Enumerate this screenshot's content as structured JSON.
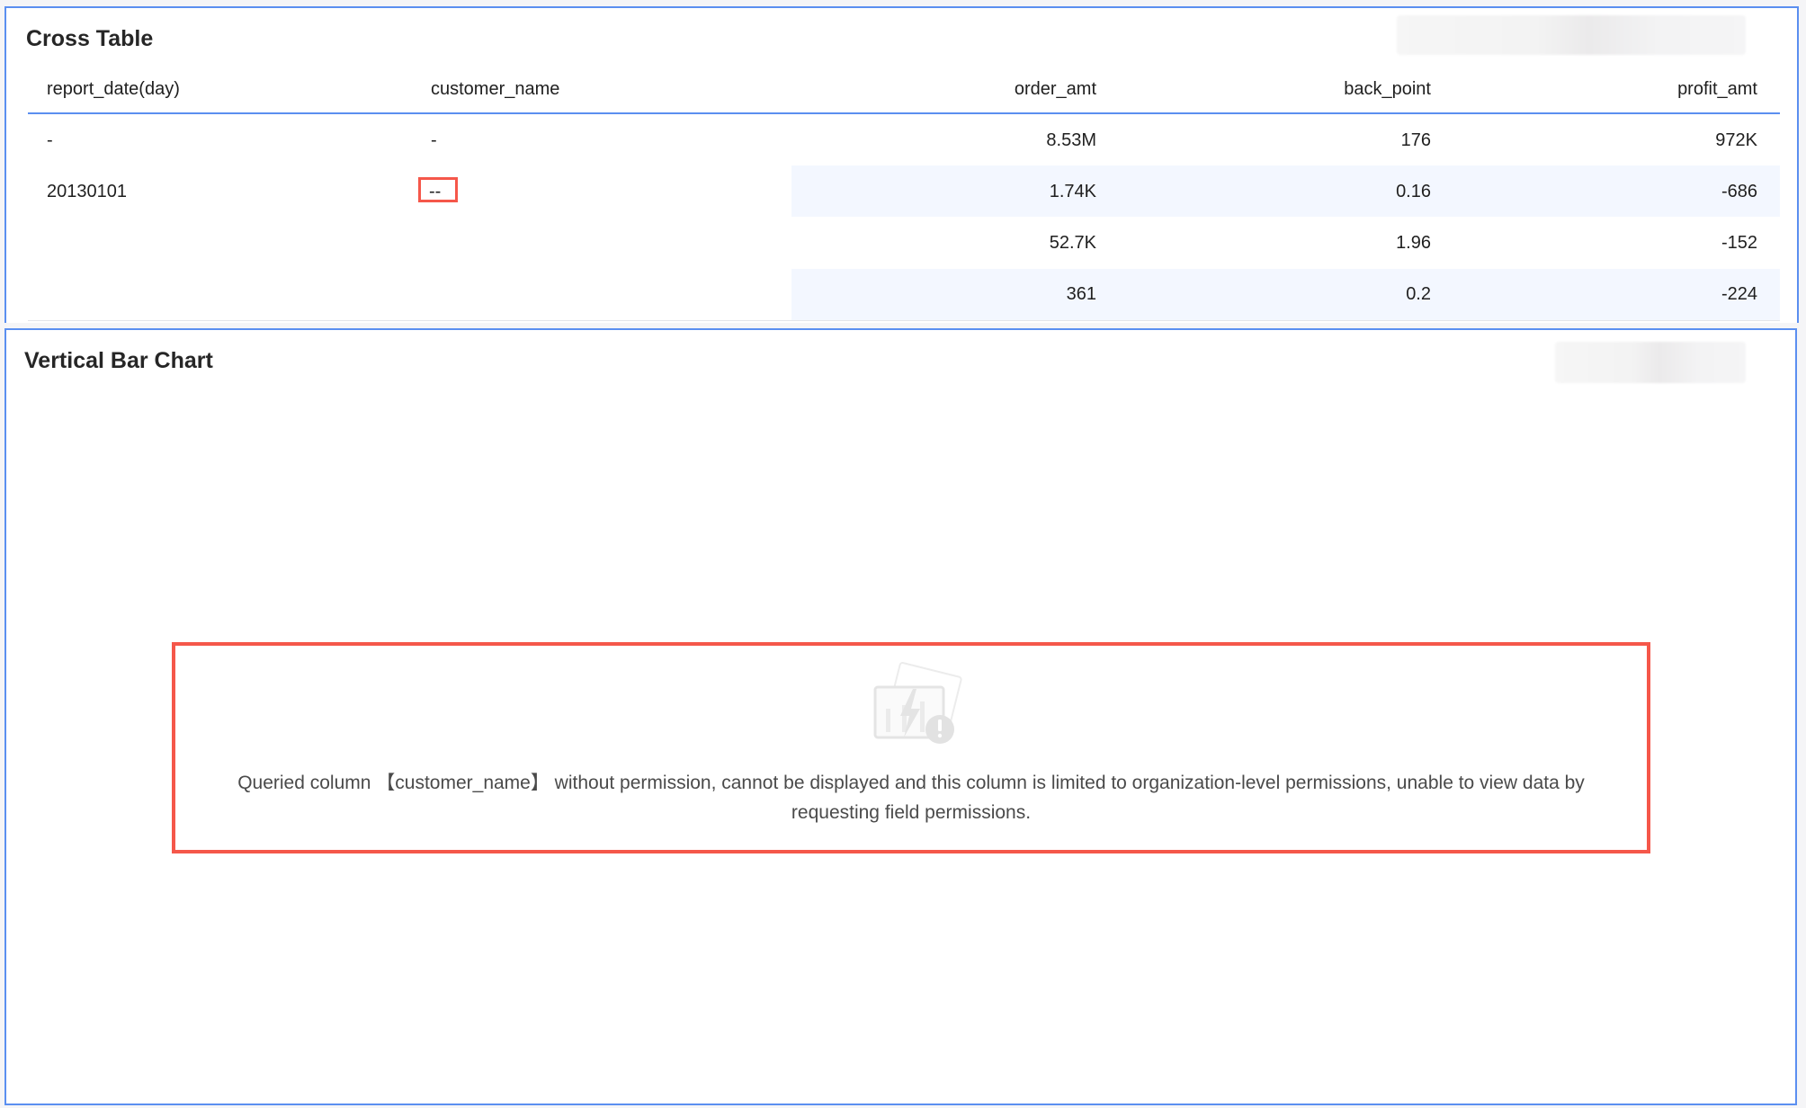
{
  "cross_table": {
    "title": "Cross Table",
    "columns": [
      "report_date(day)",
      "customer_name",
      "order_amt",
      "back_point",
      "profit_amt"
    ],
    "rows": [
      [
        "-",
        "-",
        "8.53M",
        "176",
        "972K"
      ],
      [
        "20130101",
        "--",
        "1.74K",
        "0.16",
        "-686"
      ],
      [
        "",
        "",
        "52.7K",
        "1.96",
        "-152"
      ],
      [
        "",
        "",
        "361",
        "0.2",
        "-224"
      ]
    ],
    "highlighted_cell": "customer_name masked value"
  },
  "bar_chart": {
    "title": "Vertical Bar Chart",
    "icon": "chart-error-icon",
    "error_message": "Queried column 【customer_name】 without permission, cannot be displayed and this column is limited to organization-level permissions, unable to view data by requesting field permissions."
  },
  "colors": {
    "border": "#5b8ff0",
    "highlight": "#f5574a",
    "row_band": "#f3f7ff"
  }
}
